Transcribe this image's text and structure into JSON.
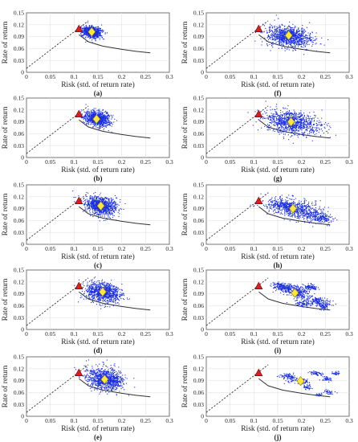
{
  "figure": {
    "colors": {
      "scatter": "#1a2fe0",
      "frontier": "#333333",
      "cml": "#222222",
      "triangle": "#d62020",
      "triangle_edge": "#7a0000",
      "diamond": "#ffe83a",
      "diamond_edge": "#8a7a00",
      "grid": "#e3e3e3",
      "axis": "#555555"
    }
  },
  "chart_data": [
    {
      "type": "scatter",
      "panel_label": "(a)",
      "xlabel": "Risk (std. of return rate)",
      "ylabel": "Rate of return",
      "xlim": [
        0,
        0.3
      ],
      "ylim": [
        0,
        0.15
      ],
      "xticks": [
        "0",
        "0.05",
        "0.1",
        "0.15",
        "0.2",
        "0.25",
        "0.3"
      ],
      "yticks": [
        "0",
        "0.03",
        "0.06",
        "0.09",
        "0.12",
        "0.15"
      ],
      "grid": true,
      "frontier": {
        "x": [
          0.11,
          0.13,
          0.16,
          0.2,
          0.23,
          0.26
        ],
        "y": [
          0.095,
          0.077,
          0.066,
          0.058,
          0.053,
          0.049
        ]
      },
      "cml": {
        "x": [
          0,
          0.13
        ],
        "y": [
          0.01,
          0.13
        ]
      },
      "tangency": {
        "x": 0.11,
        "y": 0.109
      },
      "mean": {
        "x": 0.137,
        "y": 0.102
      },
      "cloud": [
        {
          "cx": 0.135,
          "cy": 0.103,
          "sx": 0.011,
          "sy": 0.0065,
          "n": 850
        }
      ]
    },
    {
      "type": "scatter",
      "panel_label": "(b)",
      "xlabel": "Risk (std. of return rate)",
      "ylabel": "Rate of return",
      "xlim": [
        0,
        0.3
      ],
      "ylim": [
        0,
        0.15
      ],
      "xticks": [
        "0",
        "0.05",
        "0.1",
        "0.15",
        "0.2",
        "0.25",
        "0.3"
      ],
      "yticks": [
        "0",
        "0.03",
        "0.06",
        "0.09",
        "0.12",
        "0.15"
      ],
      "grid": true,
      "frontier": {
        "x": [
          0.11,
          0.13,
          0.16,
          0.2,
          0.23,
          0.26
        ],
        "y": [
          0.095,
          0.077,
          0.066,
          0.058,
          0.053,
          0.049
        ]
      },
      "cml": {
        "x": [
          0,
          0.13
        ],
        "y": [
          0.01,
          0.13
        ]
      },
      "tangency": {
        "x": 0.11,
        "y": 0.109
      },
      "mean": {
        "x": 0.147,
        "y": 0.097
      },
      "cloud": [
        {
          "cx": 0.145,
          "cy": 0.099,
          "sx": 0.015,
          "sy": 0.009,
          "n": 900
        }
      ]
    },
    {
      "type": "scatter",
      "panel_label": "(c)",
      "xlabel": "Risk (std. of return rate)",
      "ylabel": "Rate of return",
      "xlim": [
        0,
        0.3
      ],
      "ylim": [
        0,
        0.15
      ],
      "xticks": [
        "0",
        "0.05",
        "0.1",
        "0.15",
        "0.2",
        "0.25",
        "0.3"
      ],
      "yticks": [
        "0",
        "0.03",
        "0.06",
        "0.09",
        "0.12",
        "0.15"
      ],
      "grid": true,
      "frontier": {
        "x": [
          0.11,
          0.13,
          0.16,
          0.2,
          0.23,
          0.26
        ],
        "y": [
          0.095,
          0.077,
          0.066,
          0.058,
          0.053,
          0.049
        ]
      },
      "cml": {
        "x": [
          0,
          0.13
        ],
        "y": [
          0.01,
          0.13
        ]
      },
      "tangency": {
        "x": 0.11,
        "y": 0.109
      },
      "mean": {
        "x": 0.156,
        "y": 0.097
      },
      "cloud": [
        {
          "cx": 0.152,
          "cy": 0.098,
          "sx": 0.018,
          "sy": 0.011,
          "n": 950
        }
      ]
    },
    {
      "type": "scatter",
      "panel_label": "(d)",
      "xlabel": "Risk (std. of return rate)",
      "ylabel": "Rate of return",
      "xlim": [
        0,
        0.3
      ],
      "ylim": [
        0,
        0.15
      ],
      "xticks": [
        "0",
        "0.05",
        "0.1",
        "0.15",
        "0.2",
        "0.25",
        "0.3"
      ],
      "yticks": [
        "0",
        "0.03",
        "0.06",
        "0.09",
        "0.12",
        "0.15"
      ],
      "grid": true,
      "frontier": {
        "x": [
          0.11,
          0.13,
          0.16,
          0.2,
          0.23,
          0.26
        ],
        "y": [
          0.095,
          0.077,
          0.066,
          0.058,
          0.053,
          0.049
        ]
      },
      "cml": {
        "x": [
          0,
          0.13
        ],
        "y": [
          0.01,
          0.13
        ]
      },
      "tangency": {
        "x": 0.11,
        "y": 0.109
      },
      "mean": {
        "x": 0.16,
        "y": 0.095
      },
      "cloud": [
        {
          "cx": 0.156,
          "cy": 0.096,
          "sx": 0.02,
          "sy": 0.012,
          "n": 950
        }
      ]
    },
    {
      "type": "scatter",
      "panel_label": "(e)",
      "xlabel": "Risk (std. of return rate)",
      "ylabel": "Rate of return",
      "xlim": [
        0,
        0.3
      ],
      "ylim": [
        0,
        0.15
      ],
      "xticks": [
        "0",
        "0.05",
        "0.1",
        "0.15",
        "0.2",
        "0.25",
        "0.3"
      ],
      "yticks": [
        "0",
        "0.03",
        "0.06",
        "0.09",
        "0.12",
        "0.15"
      ],
      "grid": true,
      "frontier": {
        "x": [
          0.11,
          0.13,
          0.16,
          0.2,
          0.23,
          0.26
        ],
        "y": [
          0.095,
          0.077,
          0.066,
          0.058,
          0.053,
          0.049
        ]
      },
      "cml": {
        "x": [
          0,
          0.13
        ],
        "y": [
          0.01,
          0.13
        ]
      },
      "tangency": {
        "x": 0.11,
        "y": 0.109
      },
      "mean": {
        "x": 0.164,
        "y": 0.093
      },
      "cloud": [
        {
          "cx": 0.16,
          "cy": 0.095,
          "sx": 0.021,
          "sy": 0.013,
          "n": 950
        }
      ]
    },
    {
      "type": "scatter",
      "panel_label": "(f)",
      "xlabel": "Risk (std. of return rate)",
      "ylabel": "Rate of return",
      "xlim": [
        0,
        0.3
      ],
      "ylim": [
        0,
        0.15
      ],
      "xticks": [
        "0",
        "0.05",
        "0.1",
        "0.15",
        "0.2",
        "0.25",
        "0.3"
      ],
      "yticks": [
        "0",
        "0.03",
        "0.06",
        "0.09",
        "0.12",
        "0.15"
      ],
      "grid": true,
      "frontier": {
        "x": [
          0.11,
          0.13,
          0.16,
          0.2,
          0.23,
          0.26
        ],
        "y": [
          0.095,
          0.077,
          0.066,
          0.058,
          0.053,
          0.049
        ]
      },
      "cml": {
        "x": [
          0,
          0.13
        ],
        "y": [
          0.01,
          0.13
        ]
      },
      "tangency": {
        "x": 0.11,
        "y": 0.109
      },
      "mean": {
        "x": 0.173,
        "y": 0.093
      },
      "cloud": [
        {
          "cx": 0.168,
          "cy": 0.092,
          "sx": 0.026,
          "sy": 0.013,
          "n": 1000
        }
      ]
    },
    {
      "type": "scatter",
      "panel_label": "(g)",
      "xlabel": "Risk (std. of return rate)",
      "ylabel": "Rate of return",
      "xlim": [
        0,
        0.3
      ],
      "ylim": [
        0,
        0.15
      ],
      "xticks": [
        "0",
        "0.05",
        "0.1",
        "0.15",
        "0.2",
        "0.25",
        "0.3"
      ],
      "yticks": [
        "0",
        "0.03",
        "0.06",
        "0.09",
        "0.12",
        "0.15"
      ],
      "grid": true,
      "frontier": {
        "x": [
          0.11,
          0.13,
          0.16,
          0.2,
          0.23,
          0.26
        ],
        "y": [
          0.095,
          0.077,
          0.066,
          0.058,
          0.053,
          0.049
        ]
      },
      "cml": {
        "x": [
          0,
          0.13
        ],
        "y": [
          0.01,
          0.13
        ]
      },
      "tangency": {
        "x": 0.11,
        "y": 0.109
      },
      "mean": {
        "x": 0.178,
        "y": 0.09
      },
      "cloud": [
        {
          "cx": 0.174,
          "cy": 0.09,
          "sx": 0.032,
          "sy": 0.014,
          "n": 1000
        }
      ]
    },
    {
      "type": "scatter",
      "panel_label": "(h)",
      "xlabel": "Risk (std. of return rate)",
      "ylabel": "Rate of return",
      "xlim": [
        0,
        0.3
      ],
      "ylim": [
        0,
        0.15
      ],
      "xticks": [
        "0",
        "0.05",
        "0.1",
        "0.15",
        "0.2",
        "0.25",
        "0.3"
      ],
      "yticks": [
        "0",
        "0.03",
        "0.06",
        "0.09",
        "0.12",
        "0.15"
      ],
      "grid": true,
      "frontier": {
        "x": [
          0.11,
          0.13,
          0.16,
          0.2,
          0.23,
          0.26
        ],
        "y": [
          0.095,
          0.077,
          0.066,
          0.058,
          0.053,
          0.049
        ]
      },
      "cml": {
        "x": [
          0,
          0.13
        ],
        "y": [
          0.01,
          0.13
        ]
      },
      "tangency": {
        "x": 0.11,
        "y": 0.109
      },
      "mean": {
        "x": 0.182,
        "y": 0.09
      },
      "cloud": [
        {
          "cx": 0.16,
          "cy": 0.098,
          "sx": 0.02,
          "sy": 0.01,
          "n": 450
        },
        {
          "cx": 0.2,
          "cy": 0.084,
          "sx": 0.022,
          "sy": 0.012,
          "n": 400
        },
        {
          "cx": 0.24,
          "cy": 0.068,
          "sx": 0.012,
          "sy": 0.006,
          "n": 150
        }
      ]
    },
    {
      "type": "scatter",
      "panel_label": "(i)",
      "xlabel": "Risk (std. of return rate)",
      "ylabel": "Rate of return",
      "xlim": [
        0,
        0.3
      ],
      "ylim": [
        0,
        0.15
      ],
      "xticks": [
        "0",
        "0.05",
        "0.1",
        "0.15",
        "0.2",
        "0.25",
        "0.3"
      ],
      "yticks": [
        "0",
        "0.03",
        "0.06",
        "0.09",
        "0.12",
        "0.15"
      ],
      "grid": true,
      "frontier": {
        "x": [
          0.11,
          0.13,
          0.16,
          0.2,
          0.23,
          0.26
        ],
        "y": [
          0.095,
          0.077,
          0.066,
          0.058,
          0.053,
          0.049
        ]
      },
      "cml": {
        "x": [
          0,
          0.13
        ],
        "y": [
          0.01,
          0.13
        ]
      },
      "tangency": {
        "x": 0.11,
        "y": 0.109
      },
      "mean": {
        "x": 0.186,
        "y": 0.092
      },
      "cloud": [
        {
          "cx": 0.16,
          "cy": 0.108,
          "sx": 0.012,
          "sy": 0.006,
          "n": 220
        },
        {
          "cx": 0.19,
          "cy": 0.095,
          "sx": 0.012,
          "sy": 0.008,
          "n": 260
        },
        {
          "cx": 0.215,
          "cy": 0.108,
          "sx": 0.008,
          "sy": 0.004,
          "n": 90
        },
        {
          "cx": 0.23,
          "cy": 0.072,
          "sx": 0.015,
          "sy": 0.006,
          "n": 160
        },
        {
          "cx": 0.2,
          "cy": 0.066,
          "sx": 0.01,
          "sy": 0.004,
          "n": 80
        },
        {
          "cx": 0.245,
          "cy": 0.06,
          "sx": 0.008,
          "sy": 0.004,
          "n": 70
        }
      ]
    },
    {
      "type": "scatter",
      "panel_label": "(j)",
      "xlabel": "Risk (std. of return rate)",
      "ylabel": "Rate of return",
      "xlim": [
        0,
        0.3
      ],
      "ylim": [
        0,
        0.15
      ],
      "xticks": [
        "0",
        "0.05",
        "0.1",
        "0.15",
        "0.2",
        "0.25",
        "0.3"
      ],
      "yticks": [
        "0",
        "0.03",
        "0.06",
        "0.09",
        "0.12",
        "0.15"
      ],
      "grid": true,
      "frontier": {
        "x": [
          0.11,
          0.13,
          0.16,
          0.2,
          0.23,
          0.26
        ],
        "y": [
          0.095,
          0.077,
          0.066,
          0.058,
          0.053,
          0.049
        ]
      },
      "cml": {
        "x": [
          0,
          0.13
        ],
        "y": [
          0.01,
          0.13
        ]
      },
      "tangency": {
        "x": 0.11,
        "y": 0.109
      },
      "mean": {
        "x": 0.198,
        "y": 0.089
      },
      "cloud": [
        {
          "cx": 0.17,
          "cy": 0.1,
          "sx": 0.01,
          "sy": 0.005,
          "n": 110
        },
        {
          "cx": 0.2,
          "cy": 0.09,
          "sx": 0.007,
          "sy": 0.004,
          "n": 70
        },
        {
          "cx": 0.23,
          "cy": 0.109,
          "sx": 0.008,
          "sy": 0.003,
          "n": 60
        },
        {
          "cx": 0.25,
          "cy": 0.095,
          "sx": 0.006,
          "sy": 0.003,
          "n": 40
        },
        {
          "cx": 0.27,
          "cy": 0.11,
          "sx": 0.005,
          "sy": 0.003,
          "n": 30
        },
        {
          "cx": 0.21,
          "cy": 0.075,
          "sx": 0.006,
          "sy": 0.003,
          "n": 40
        },
        {
          "cx": 0.255,
          "cy": 0.062,
          "sx": 0.006,
          "sy": 0.003,
          "n": 35
        },
        {
          "cx": 0.235,
          "cy": 0.055,
          "sx": 0.004,
          "sy": 0.002,
          "n": 20
        }
      ]
    }
  ]
}
